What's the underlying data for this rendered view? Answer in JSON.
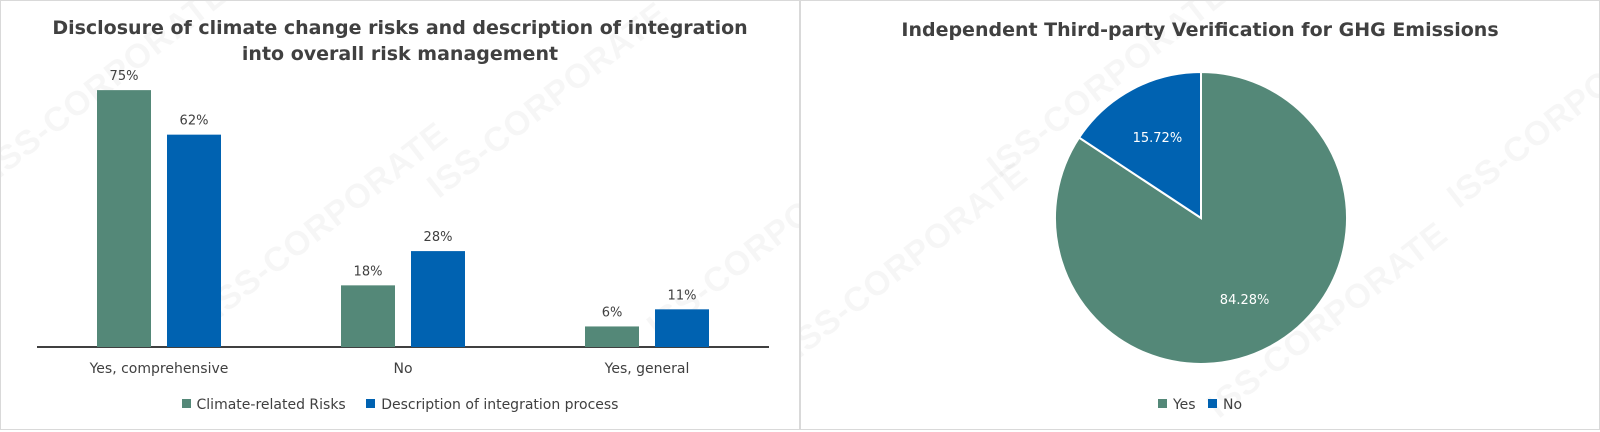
{
  "watermark": "ISS-CORPORATE",
  "chart_data": [
    {
      "type": "bar",
      "title": "Disclosure of climate change risks and description of integration into overall risk management",
      "title_line1": "Disclosure of climate change risks and description of integration",
      "title_line2": "into overall risk management",
      "categories": [
        "Yes, comprehensive",
        "No",
        "Yes, general"
      ],
      "series": [
        {
          "name": "Climate-related Risks",
          "values": [
            75,
            18,
            6
          ],
          "labels": [
            "75%",
            "18%",
            "6%"
          ],
          "color": "#548878"
        },
        {
          "name": "Description of integration process",
          "values": [
            62,
            28,
            11
          ],
          "labels": [
            "62%",
            "28%",
            "11%"
          ],
          "color": "#0062b1"
        }
      ],
      "ylim": [
        0,
        80
      ],
      "grid": false,
      "legend": "bottom"
    },
    {
      "type": "pie",
      "title": "Independent Third-party Verification for GHG Emissions",
      "slices": [
        {
          "name": "Yes",
          "value": 84.28,
          "label": "84.28%",
          "color": "#548878"
        },
        {
          "name": "No",
          "value": 15.72,
          "label": "15.72%",
          "color": "#0062b1"
        }
      ],
      "legend": "bottom"
    }
  ]
}
